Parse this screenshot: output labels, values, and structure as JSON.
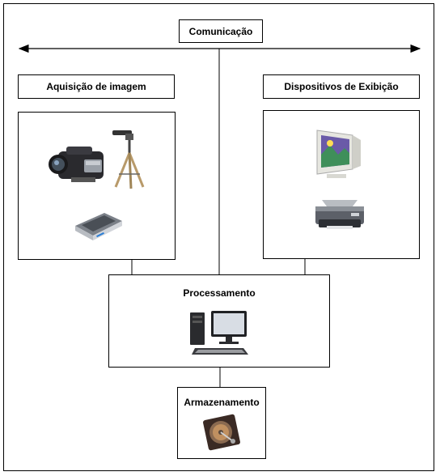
{
  "diagram": {
    "communication": {
      "label": "Comunicação"
    },
    "acquisition": {
      "label": "Aquisição de imagem",
      "icons": [
        "camcorder-icon",
        "tripod-icon",
        "scanner-icon"
      ]
    },
    "display": {
      "label": "Dispositivos de Exibição",
      "icons": [
        "crt-monitor-icon",
        "printer-icon"
      ]
    },
    "processing": {
      "label": "Processamento",
      "icons": [
        "desktop-computer-icon"
      ]
    },
    "storage": {
      "label": "Armazenamento",
      "icons": [
        "hard-disk-icon"
      ]
    }
  }
}
